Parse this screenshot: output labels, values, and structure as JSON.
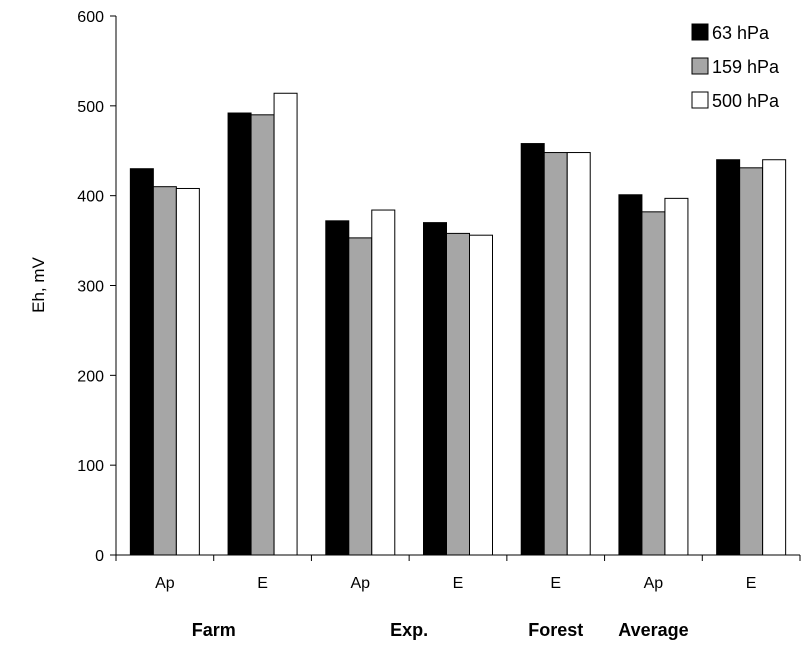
{
  "chart_data": {
    "type": "bar",
    "title": "",
    "xlabel": "",
    "ylabel": "Eh, mV",
    "ylim": [
      0,
      600
    ],
    "yticks": [
      0,
      100,
      200,
      300,
      400,
      500,
      600
    ],
    "grid": false,
    "legend_position": "top-right",
    "categories": [
      "Ap",
      "E",
      "Ap",
      "E",
      "E",
      "Ap",
      "E"
    ],
    "groups": [
      {
        "label": "Farm",
        "span": [
          0,
          1
        ]
      },
      {
        "label": "Exp.",
        "span": [
          2,
          3
        ]
      },
      {
        "label": "Forest",
        "span": [
          4,
          4
        ]
      },
      {
        "label": "Average",
        "span": [
          5,
          5
        ]
      }
    ],
    "series": [
      {
        "name": "63 hPa",
        "color": "#000000",
        "values": [
          430,
          492,
          372,
          370,
          458,
          401,
          440
        ]
      },
      {
        "name": "159 hPa",
        "color": "#a6a6a6",
        "values": [
          410,
          490,
          353,
          358,
          448,
          382,
          431
        ]
      },
      {
        "name": "500 hPa",
        "color": "#ffffff",
        "values": [
          408,
          514,
          384,
          356,
          448,
          397,
          440
        ]
      }
    ]
  }
}
